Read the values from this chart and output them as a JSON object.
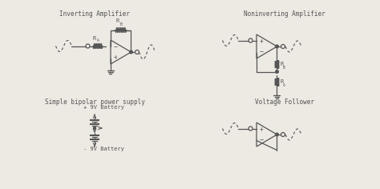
{
  "bg_color": "#ede9e3",
  "line_color": "#555555",
  "title_color": "#555555",
  "titles": {
    "inv_amp": "Inverting Amplifier",
    "noninv_amp": "Noninverting Amplifier",
    "bipolar": "Simple bipolar power supply",
    "vf": "Voltage Follower"
  },
  "font_family": "monospace"
}
